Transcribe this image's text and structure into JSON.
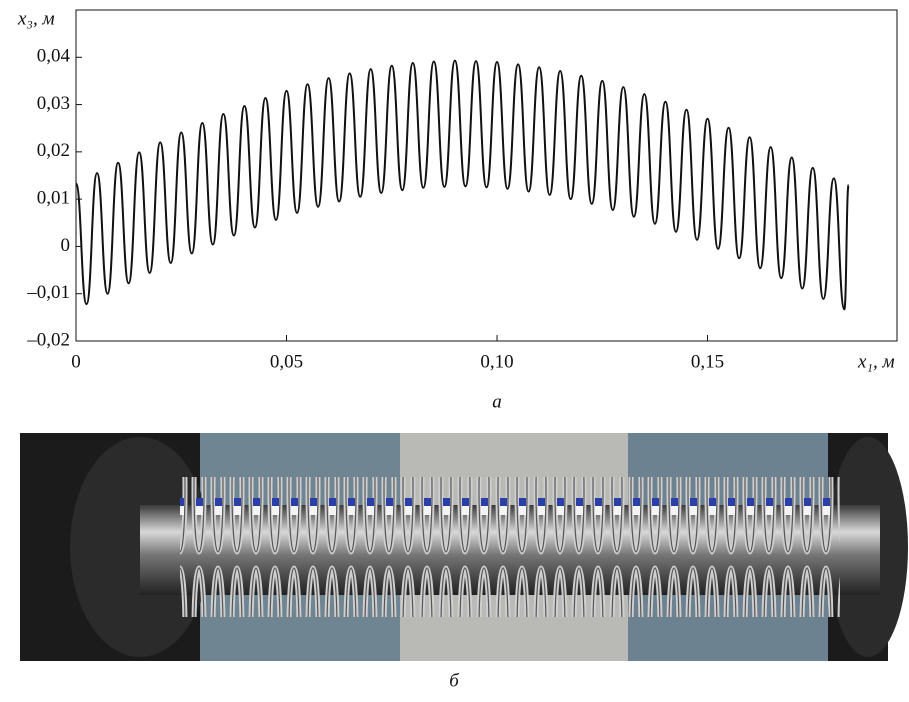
{
  "chart_data": {
    "type": "line",
    "y_label": "x₃, м",
    "x_label": "x₁, м",
    "color": "#111111",
    "x": [
      0,
      0.0025,
      0.005,
      0.0075,
      0.01,
      0.0125,
      0.015,
      0.0175,
      0.02,
      0.0225,
      0.025,
      0.0275,
      0.03,
      0.0325,
      0.035,
      0.0375,
      0.04,
      0.0425,
      0.045,
      0.0475,
      0.05,
      0.0525,
      0.055,
      0.0575,
      0.06,
      0.0625,
      0.065,
      0.0675,
      0.07,
      0.0725,
      0.075,
      0.0775,
      0.08,
      0.0825,
      0.085,
      0.0875,
      0.09,
      0.0925,
      0.095,
      0.0975,
      0.1,
      0.1025,
      0.105,
      0.1075,
      0.11,
      0.1125,
      0.115,
      0.1175,
      0.12,
      0.1225,
      0.125,
      0.1275,
      0.13,
      0.1325,
      0.135,
      0.1375,
      0.14,
      0.1425,
      0.145,
      0.1475,
      0.15,
      0.1525,
      0.155,
      0.1575,
      0.16,
      0.1625,
      0.165,
      0.1675,
      0.17,
      0.1725,
      0.175,
      0.1775,
      0.18,
      0.1825,
      0.1835
    ],
    "values": [
      0.0133,
      -0.0122,
      0.0155,
      -0.01,
      0.0177,
      -0.0078,
      0.0199,
      -0.0056,
      0.022,
      -0.0035,
      0.0241,
      -0.0015,
      0.0261,
      0.0004,
      0.028,
      0.0023,
      0.0297,
      0.004,
      0.0314,
      0.0056,
      0.0329,
      0.0071,
      0.0343,
      0.0084,
      0.0356,
      0.0095,
      0.0366,
      0.0105,
      0.0375,
      0.0113,
      0.0382,
      0.0119,
      0.0388,
      0.0124,
      0.0391,
      0.0126,
      0.0393,
      0.0127,
      0.0392,
      0.0125,
      0.039,
      0.0122,
      0.0385,
      0.0116,
      0.0379,
      0.0109,
      0.0371,
      0.01,
      0.0361,
      0.009,
      0.035,
      0.0077,
      0.0337,
      0.0063,
      0.0322,
      0.0048,
      0.0306,
      0.0031,
      0.0289,
      0.0014,
      0.027,
      -0.0005,
      0.0251,
      -0.0025,
      0.0231,
      -0.0046,
      0.021,
      -0.0067,
      0.0188,
      -0.0089,
      0.0166,
      -0.0111,
      0.0144,
      -0.0133,
      0.013
    ],
    "xlim": [
      0,
      0.195
    ],
    "ylim": [
      -0.02,
      0.05
    ],
    "xticks": [
      0,
      {
        "value": 0.05,
        "label": "0,05"
      },
      {
        "value": 0.1,
        "label": "0,10"
      },
      {
        "value": 0.15,
        "label": "0,15"
      }
    ],
    "yticks": [
      {
        "value": -0.02,
        "label": "–0,02"
      },
      {
        "value": -0.01,
        "label": "–0,01"
      },
      0,
      {
        "value": 0.01,
        "label": "0,01"
      },
      {
        "value": 0.02,
        "label": "0,02"
      },
      {
        "value": 0.03,
        "label": "0,03"
      },
      {
        "value": 0.04,
        "label": "0,04"
      }
    ],
    "grid": false
  },
  "captions": [
    "а",
    "б"
  ]
}
